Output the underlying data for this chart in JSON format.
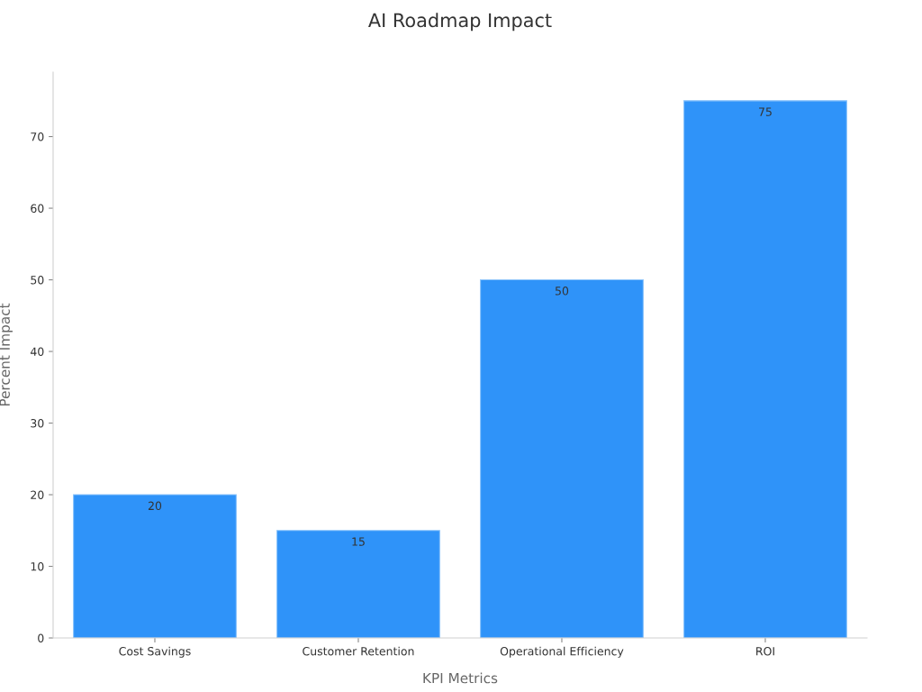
{
  "chart_data": {
    "type": "bar",
    "title": "AI Roadmap Impact",
    "xlabel": "KPI Metrics",
    "ylabel": "Percent Impact",
    "categories": [
      "Cost Savings",
      "Customer Retention",
      "Operational Efficiency",
      "ROI"
    ],
    "values": [
      20,
      15,
      50,
      75
    ],
    "color": "#2f93f9",
    "ylim": [
      0,
      79
    ],
    "yticks": [
      0,
      10,
      20,
      30,
      40,
      50,
      60,
      70
    ],
    "data_labels": true,
    "grid": false,
    "legend": false
  }
}
